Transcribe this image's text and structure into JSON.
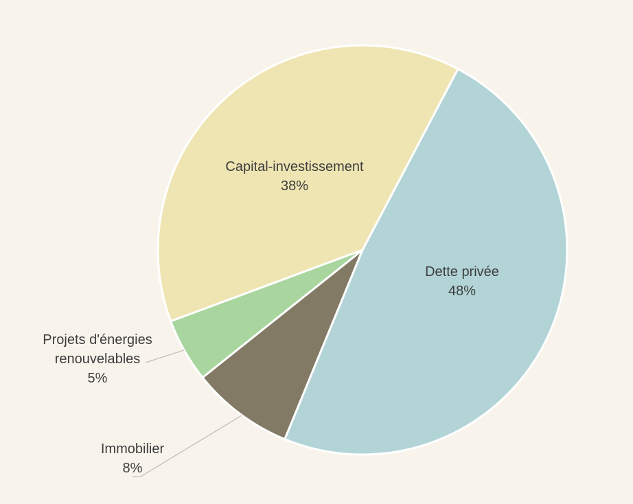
{
  "chart_data": {
    "type": "pie",
    "title": "",
    "start_angle_deg": -62.2,
    "center": [
      528,
      364
    ],
    "radius": 298,
    "slices": [
      {
        "label": "Dette privée",
        "value": 48,
        "percent_label": "48%",
        "color": "#b3d4d7",
        "label_inside": true
      },
      {
        "label": "Immobilier",
        "value": 8,
        "percent_label": "8%",
        "color": "#837a65",
        "label_inside": false
      },
      {
        "label": "Projets d'énergies renouvelables",
        "value": 5,
        "percent_label": "5%",
        "color": "#a8d69e",
        "label_inside": false
      },
      {
        "label": "Capital-investissement",
        "value": 38,
        "percent_label": "38%",
        "color": "#efe5b3",
        "label_inside": true
      }
    ],
    "label_color": "#3d3d3d",
    "leader_line_color": "#c2beb6",
    "slice_border_color": "#ffffff",
    "background": "#f8f4ec",
    "legend": "none"
  },
  "labels": {
    "dette": {
      "line1": "Dette privée",
      "pct": "48%"
    },
    "capital": {
      "line1": "Capital-investissement",
      "pct": "38%"
    },
    "energies": {
      "line1": "Projets d'énergies",
      "line2": "renouvelables",
      "pct": "5%"
    },
    "immobilier": {
      "line1": "Immobilier",
      "pct": "8%"
    }
  }
}
